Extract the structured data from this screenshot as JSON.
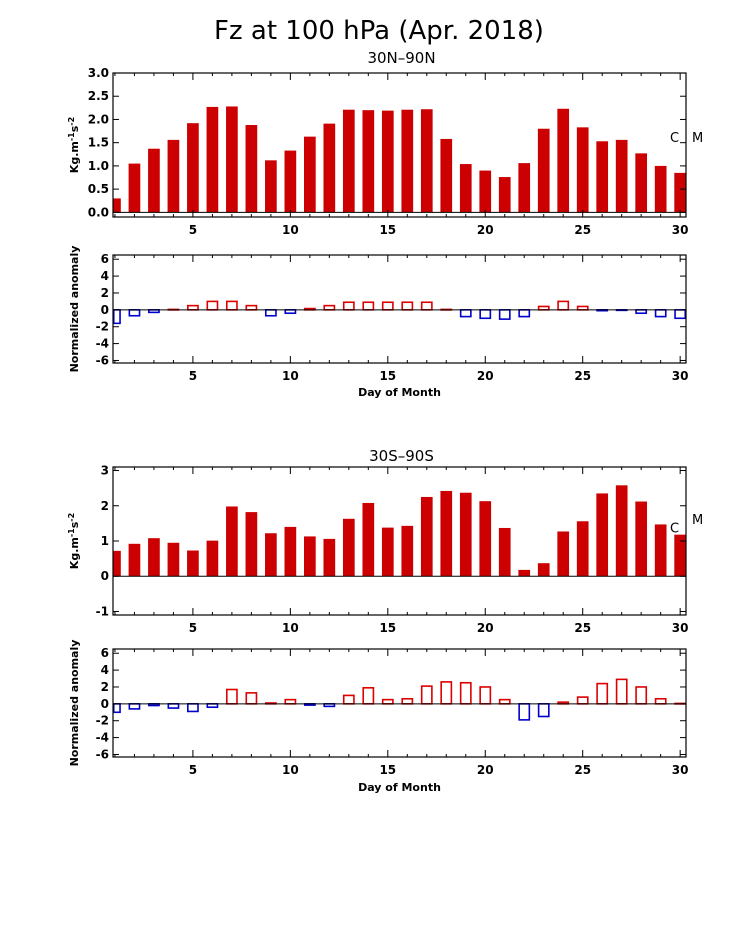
{
  "title": "Fz at 100 hPa (Apr. 2018)",
  "labels": {
    "fz_ylabel_base": "Kg.m",
    "fz_ylabel_sup1": "-1",
    "fz_ylabel_mid": "s",
    "fz_ylabel_sup2": "-2",
    "anom_ylabel": "Normalized anomaly",
    "xlabel": "Day of Month",
    "marker_c": "C",
    "marker_m": "M"
  },
  "colors": {
    "fz_bar": "#cc0000",
    "positive_anomaly": "#dd0000",
    "negative_anomaly": "#0000cc",
    "axis": "#000000"
  },
  "chart_data": [
    {
      "type": "bar",
      "panel": "30N-90N flux",
      "title": "30N–90N",
      "xlabel": "",
      "ylabel": "Kg.m-1s-2",
      "x": [
        1,
        2,
        3,
        4,
        5,
        6,
        7,
        8,
        9,
        10,
        11,
        12,
        13,
        14,
        15,
        16,
        17,
        18,
        19,
        20,
        21,
        22,
        23,
        24,
        25,
        26,
        27,
        28,
        29,
        30
      ],
      "values": [
        0.3,
        1.05,
        1.37,
        1.56,
        1.92,
        2.27,
        2.28,
        1.88,
        1.12,
        1.33,
        1.63,
        1.91,
        2.21,
        2.2,
        2.19,
        2.21,
        2.22,
        1.58,
        1.04,
        0.9,
        0.76,
        1.06,
        1.8,
        2.23,
        1.83,
        1.53,
        1.56,
        1.27,
        1.0,
        0.85
      ],
      "xlim": [
        0.9,
        30.3
      ],
      "ylim": [
        -0.1,
        3.0
      ],
      "yticks": [
        0.0,
        0.5,
        1.0,
        1.5,
        2.0,
        2.5,
        3.0
      ],
      "ytick_labels": [
        "0.0",
        "0.5",
        "1.0",
        "1.5",
        "2.0",
        "2.5",
        "3.0"
      ],
      "xticks": [
        5,
        10,
        15,
        20,
        25,
        30
      ],
      "xtick_labels": [
        "5",
        "10",
        "15",
        "20",
        "25",
        "30"
      ],
      "c_level": 1.6,
      "m_level": 1.6
    },
    {
      "type": "bar",
      "panel": "30N-90N anomaly",
      "title": "",
      "xlabel": "Day of Month",
      "ylabel": "Normalized anomaly",
      "x": [
        1,
        2,
        3,
        4,
        5,
        6,
        7,
        8,
        9,
        10,
        11,
        12,
        13,
        14,
        15,
        16,
        17,
        18,
        19,
        20,
        21,
        22,
        23,
        24,
        25,
        26,
        27,
        28,
        29,
        30
      ],
      "values": [
        -1.6,
        -0.7,
        -0.3,
        0.05,
        0.5,
        1.0,
        1.0,
        0.5,
        -0.7,
        -0.4,
        0.15,
        0.5,
        0.9,
        0.9,
        0.9,
        0.9,
        0.9,
        0.05,
        -0.8,
        -1.0,
        -1.1,
        -0.8,
        0.4,
        1.0,
        0.4,
        -0.1,
        -0.05,
        -0.4,
        -0.8,
        -1.0
      ],
      "xlim": [
        0.9,
        30.3
      ],
      "ylim": [
        -6.3,
        6.5
      ],
      "yticks": [
        -6,
        -4,
        -2,
        0,
        2,
        4,
        6
      ],
      "ytick_labels": [
        "-6",
        "-4",
        "-2",
        "0",
        "2",
        "4",
        "6"
      ],
      "xticks": [
        5,
        10,
        15,
        20,
        25,
        30
      ],
      "xtick_labels": [
        "5",
        "10",
        "15",
        "20",
        "25",
        "30"
      ]
    },
    {
      "type": "bar",
      "panel": "30S-90S flux",
      "title": "30S–90S",
      "xlabel": "",
      "ylabel": "Kg.m-1s-2",
      "x": [
        1,
        2,
        3,
        4,
        5,
        6,
        7,
        8,
        9,
        10,
        11,
        12,
        13,
        14,
        15,
        16,
        17,
        18,
        19,
        20,
        21,
        22,
        23,
        24,
        25,
        26,
        27,
        28,
        29,
        30
      ],
      "values": [
        0.72,
        0.92,
        1.08,
        0.95,
        0.73,
        1.01,
        1.98,
        1.82,
        1.22,
        1.4,
        1.13,
        1.06,
        1.63,
        2.08,
        1.38,
        1.43,
        2.25,
        2.42,
        2.37,
        2.13,
        1.37,
        0.18,
        0.37,
        1.27,
        1.56,
        2.35,
        2.58,
        2.12,
        1.47,
        1.18
      ],
      "xlim": [
        0.9,
        30.3
      ],
      "ylim": [
        -1.1,
        3.1
      ],
      "yticks": [
        -1,
        0,
        1,
        2,
        3
      ],
      "ytick_labels": [
        "-1",
        "0",
        "1",
        "2",
        "3"
      ],
      "xticks": [
        5,
        10,
        15,
        20,
        25,
        30
      ],
      "xtick_labels": [
        "5",
        "10",
        "15",
        "20",
        "25",
        "30"
      ],
      "c_level": 1.35,
      "m_level": 1.6
    },
    {
      "type": "bar",
      "panel": "30S-90S anomaly",
      "title": "",
      "xlabel": "Day of Month",
      "ylabel": "Normalized anomaly",
      "x": [
        1,
        2,
        3,
        4,
        5,
        6,
        7,
        8,
        9,
        10,
        11,
        12,
        13,
        14,
        15,
        16,
        17,
        18,
        19,
        20,
        21,
        22,
        23,
        24,
        25,
        26,
        27,
        28,
        29,
        30
      ],
      "values": [
        -1.0,
        -0.6,
        -0.2,
        -0.5,
        -0.9,
        -0.4,
        1.7,
        1.3,
        0.1,
        0.5,
        -0.15,
        -0.3,
        1.0,
        1.9,
        0.5,
        0.6,
        2.1,
        2.6,
        2.5,
        2.0,
        0.5,
        -1.9,
        -1.5,
        0.2,
        0.8,
        2.4,
        2.9,
        2.0,
        0.6,
        0.05
      ],
      "xlim": [
        0.9,
        30.3
      ],
      "ylim": [
        -6.3,
        6.5
      ],
      "yticks": [
        -6,
        -4,
        -2,
        0,
        2,
        4,
        6
      ],
      "ytick_labels": [
        "-6",
        "-4",
        "-2",
        "0",
        "2",
        "4",
        "6"
      ],
      "xticks": [
        5,
        10,
        15,
        20,
        25,
        30
      ],
      "xtick_labels": [
        "5",
        "10",
        "15",
        "20",
        "25",
        "30"
      ]
    }
  ]
}
